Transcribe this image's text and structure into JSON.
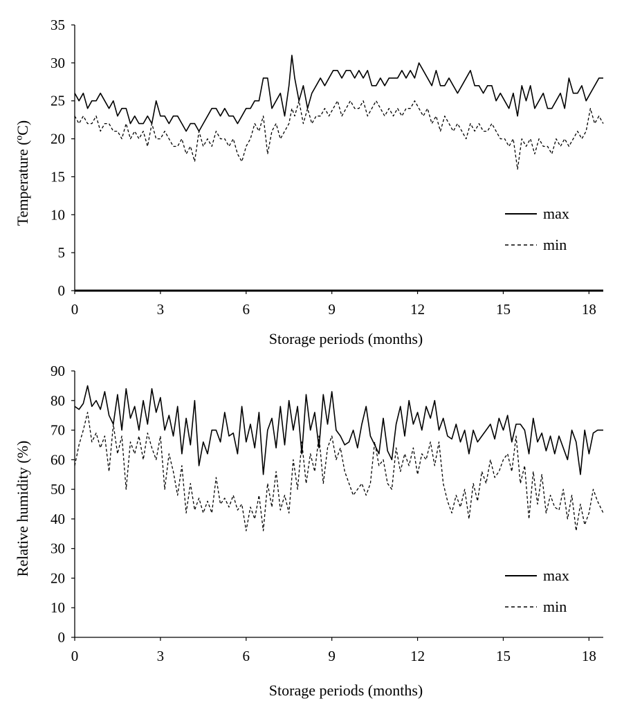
{
  "chart_data": [
    {
      "type": "line",
      "xlabel": "Storage periods (months)",
      "ylabel": "Temperature (ºC)",
      "xlim": [
        0,
        18.5
      ],
      "ylim": [
        0,
        35
      ],
      "x_ticks": [
        "0",
        "3",
        "6",
        "9",
        "12",
        "15",
        "18"
      ],
      "y_ticks": [
        "0",
        "5",
        "10",
        "15",
        "20",
        "25",
        "30",
        "35"
      ],
      "grid": false,
      "legend_position": "right",
      "series": [
        {
          "name": "max",
          "style": "solid",
          "x": [
            0,
            0.15,
            0.3,
            0.45,
            0.6,
            0.75,
            0.9,
            1.05,
            1.2,
            1.35,
            1.5,
            1.65,
            1.8,
            1.95,
            2.1,
            2.25,
            2.4,
            2.55,
            2.7,
            2.85,
            3.0,
            3.15,
            3.3,
            3.45,
            3.6,
            3.75,
            3.9,
            4.05,
            4.2,
            4.35,
            4.5,
            4.65,
            4.8,
            4.95,
            5.1,
            5.25,
            5.4,
            5.55,
            5.7,
            5.85,
            6.0,
            6.15,
            6.3,
            6.45,
            6.6,
            6.75,
            6.9,
            7.05,
            7.2,
            7.35,
            7.5,
            7.6,
            7.7,
            7.85,
            8.0,
            8.15,
            8.3,
            8.45,
            8.6,
            8.75,
            8.9,
            9.05,
            9.2,
            9.35,
            9.5,
            9.65,
            9.8,
            9.95,
            10.1,
            10.25,
            10.4,
            10.55,
            10.7,
            10.85,
            11.0,
            11.15,
            11.3,
            11.45,
            11.6,
            11.75,
            11.9,
            12.05,
            12.2,
            12.35,
            12.5,
            12.65,
            12.8,
            12.95,
            13.1,
            13.25,
            13.4,
            13.55,
            13.7,
            13.85,
            14.0,
            14.15,
            14.3,
            14.45,
            14.6,
            14.75,
            14.9,
            15.05,
            15.2,
            15.35,
            15.5,
            15.65,
            15.8,
            15.95,
            16.1,
            16.25,
            16.4,
            16.55,
            16.7,
            16.85,
            17.0,
            17.15,
            17.3,
            17.45,
            17.6,
            17.75,
            17.9,
            18.05,
            18.2,
            18.35,
            18.5
          ],
          "values": [
            26,
            25,
            26,
            24,
            25,
            25,
            26,
            25,
            24,
            25,
            23,
            24,
            24,
            22,
            23,
            22,
            22,
            23,
            22,
            25,
            23,
            23,
            22,
            23,
            23,
            22,
            21,
            22,
            22,
            21,
            22,
            23,
            24,
            24,
            23,
            24,
            23,
            23,
            22,
            23,
            24,
            24,
            25,
            25,
            28,
            28,
            24,
            25,
            26,
            23,
            27,
            31,
            28,
            25,
            27,
            24,
            26,
            27,
            28,
            27,
            28,
            29,
            29,
            28,
            29,
            29,
            28,
            29,
            28,
            29,
            27,
            27,
            28,
            27,
            28,
            28,
            28,
            29,
            28,
            29,
            28,
            30,
            29,
            28,
            27,
            29,
            27,
            27,
            28,
            27,
            26,
            27,
            28,
            29,
            27,
            27,
            26,
            27,
            27,
            25,
            26,
            25,
            24,
            26,
            23,
            27,
            25,
            27,
            24,
            25,
            26,
            24,
            24,
            25,
            26,
            24,
            28,
            26,
            26,
            27,
            25,
            26,
            27,
            28,
            28
          ]
        },
        {
          "name": "min",
          "style": "dashed",
          "x": [
            0,
            0.15,
            0.3,
            0.45,
            0.6,
            0.75,
            0.9,
            1.05,
            1.2,
            1.35,
            1.5,
            1.65,
            1.8,
            1.95,
            2.1,
            2.25,
            2.4,
            2.55,
            2.7,
            2.85,
            3.0,
            3.15,
            3.3,
            3.45,
            3.6,
            3.75,
            3.9,
            4.05,
            4.2,
            4.35,
            4.5,
            4.65,
            4.8,
            4.95,
            5.1,
            5.25,
            5.4,
            5.55,
            5.7,
            5.85,
            6.0,
            6.15,
            6.3,
            6.45,
            6.6,
            6.75,
            6.9,
            7.05,
            7.2,
            7.35,
            7.5,
            7.6,
            7.7,
            7.85,
            8.0,
            8.15,
            8.3,
            8.45,
            8.6,
            8.75,
            8.9,
            9.05,
            9.2,
            9.35,
            9.5,
            9.65,
            9.8,
            9.95,
            10.1,
            10.25,
            10.4,
            10.55,
            10.7,
            10.85,
            11.0,
            11.15,
            11.3,
            11.45,
            11.6,
            11.75,
            11.9,
            12.05,
            12.2,
            12.35,
            12.5,
            12.65,
            12.8,
            12.95,
            13.1,
            13.25,
            13.4,
            13.55,
            13.7,
            13.85,
            14.0,
            14.15,
            14.3,
            14.45,
            14.6,
            14.75,
            14.9,
            15.05,
            15.2,
            15.35,
            15.5,
            15.65,
            15.8,
            15.95,
            16.1,
            16.25,
            16.4,
            16.55,
            16.7,
            16.85,
            17.0,
            17.15,
            17.3,
            17.45,
            17.6,
            17.75,
            17.9,
            18.05,
            18.2,
            18.35,
            18.5
          ],
          "values": [
            23,
            22,
            23,
            22,
            22,
            23,
            21,
            22,
            22,
            21,
            21,
            20,
            22,
            20,
            21,
            20,
            21,
            19,
            22,
            20,
            20,
            21,
            20,
            19,
            19,
            20,
            18,
            19,
            17,
            21,
            19,
            20,
            19,
            21,
            20,
            20,
            19,
            20,
            18,
            17,
            19,
            20,
            22,
            21,
            23,
            18,
            21,
            22,
            20,
            21,
            22,
            24,
            23,
            25,
            22,
            24,
            22,
            23,
            23,
            24,
            23,
            24,
            25,
            23,
            24,
            25,
            24,
            24,
            25,
            23,
            24,
            25,
            24,
            23,
            24,
            23,
            24,
            23,
            24,
            24,
            25,
            24,
            23,
            24,
            22,
            23,
            21,
            23,
            22,
            21,
            22,
            21,
            20,
            22,
            21,
            22,
            21,
            21,
            22,
            21,
            20,
            20,
            19,
            20,
            16,
            20,
            19,
            20,
            18,
            20,
            19,
            19,
            18,
            20,
            19,
            20,
            19,
            20,
            21,
            20,
            21,
            24,
            22,
            23,
            22
          ]
        }
      ]
    },
    {
      "type": "line",
      "xlabel": "Storage periods (months)",
      "ylabel": "Relative humidity (%)",
      "xlim": [
        0,
        18.5
      ],
      "ylim": [
        0,
        90
      ],
      "x_ticks": [
        "0",
        "3",
        "6",
        "9",
        "12",
        "15",
        "18"
      ],
      "y_ticks": [
        "0",
        "10",
        "20",
        "30",
        "40",
        "50",
        "60",
        "70",
        "80",
        "90"
      ],
      "grid": false,
      "legend_position": "right",
      "series": [
        {
          "name": "max",
          "style": "solid",
          "x": [
            0,
            0.15,
            0.3,
            0.45,
            0.6,
            0.75,
            0.9,
            1.05,
            1.2,
            1.35,
            1.5,
            1.65,
            1.8,
            1.95,
            2.1,
            2.25,
            2.4,
            2.55,
            2.7,
            2.85,
            3.0,
            3.15,
            3.3,
            3.45,
            3.6,
            3.75,
            3.9,
            4.05,
            4.2,
            4.35,
            4.5,
            4.65,
            4.8,
            4.95,
            5.1,
            5.25,
            5.4,
            5.55,
            5.7,
            5.85,
            6.0,
            6.15,
            6.3,
            6.45,
            6.6,
            6.75,
            6.9,
            7.05,
            7.2,
            7.35,
            7.5,
            7.65,
            7.8,
            7.95,
            8.1,
            8.25,
            8.4,
            8.55,
            8.7,
            8.85,
            9.0,
            9.15,
            9.3,
            9.45,
            9.6,
            9.75,
            9.9,
            10.05,
            10.2,
            10.35,
            10.5,
            10.65,
            10.8,
            10.95,
            11.1,
            11.25,
            11.4,
            11.55,
            11.7,
            11.85,
            12.0,
            12.15,
            12.3,
            12.45,
            12.6,
            12.75,
            12.9,
            13.05,
            13.2,
            13.35,
            13.5,
            13.65,
            13.8,
            13.95,
            14.1,
            14.25,
            14.4,
            14.55,
            14.7,
            14.85,
            15.0,
            15.15,
            15.3,
            15.45,
            15.6,
            15.75,
            15.9,
            16.05,
            16.2,
            16.35,
            16.5,
            16.65,
            16.8,
            16.95,
            17.1,
            17.25,
            17.4,
            17.55,
            17.7,
            17.85,
            18.0,
            18.15,
            18.3,
            18.5
          ],
          "values": [
            78,
            77,
            79,
            85,
            78,
            80,
            77,
            83,
            75,
            72,
            82,
            70,
            84,
            74,
            78,
            70,
            80,
            72,
            84,
            76,
            81,
            70,
            75,
            68,
            78,
            62,
            74,
            65,
            80,
            58,
            66,
            62,
            70,
            70,
            66,
            76,
            68,
            69,
            62,
            78,
            66,
            72,
            64,
            76,
            55,
            70,
            74,
            64,
            78,
            65,
            80,
            70,
            78,
            62,
            82,
            70,
            76,
            64,
            82,
            72,
            83,
            70,
            68,
            65,
            66,
            70,
            64,
            72,
            78,
            68,
            65,
            62,
            74,
            63,
            60,
            72,
            78,
            68,
            80,
            72,
            76,
            70,
            78,
            74,
            80,
            70,
            74,
            68,
            67,
            72,
            66,
            70,
            62,
            70,
            66,
            68,
            70,
            72,
            67,
            74,
            70,
            75,
            66,
            72,
            72,
            70,
            62,
            74,
            66,
            69,
            63,
            68,
            62,
            68,
            64,
            60,
            70,
            66,
            55,
            70,
            62,
            69,
            70,
            70
          ]
        },
        {
          "name": "min",
          "style": "dashed",
          "x": [
            0,
            0.15,
            0.3,
            0.45,
            0.6,
            0.75,
            0.9,
            1.05,
            1.2,
            1.35,
            1.5,
            1.65,
            1.8,
            1.95,
            2.1,
            2.25,
            2.4,
            2.55,
            2.7,
            2.85,
            3.0,
            3.15,
            3.3,
            3.45,
            3.6,
            3.75,
            3.9,
            4.05,
            4.2,
            4.35,
            4.5,
            4.65,
            4.8,
            4.95,
            5.1,
            5.25,
            5.4,
            5.55,
            5.7,
            5.85,
            6.0,
            6.15,
            6.3,
            6.45,
            6.6,
            6.75,
            6.9,
            7.05,
            7.2,
            7.35,
            7.5,
            7.65,
            7.8,
            7.95,
            8.1,
            8.25,
            8.4,
            8.55,
            8.7,
            8.85,
            9.0,
            9.15,
            9.3,
            9.45,
            9.6,
            9.75,
            9.9,
            10.05,
            10.2,
            10.35,
            10.5,
            10.65,
            10.8,
            10.95,
            11.1,
            11.25,
            11.4,
            11.55,
            11.7,
            11.85,
            12.0,
            12.15,
            12.3,
            12.45,
            12.6,
            12.75,
            12.9,
            13.05,
            13.2,
            13.35,
            13.5,
            13.65,
            13.8,
            13.95,
            14.1,
            14.25,
            14.4,
            14.55,
            14.7,
            14.85,
            15.0,
            15.15,
            15.3,
            15.45,
            15.6,
            15.75,
            15.9,
            16.05,
            16.2,
            16.35,
            16.5,
            16.65,
            16.8,
            16.95,
            17.1,
            17.25,
            17.4,
            17.55,
            17.7,
            17.85,
            18.0,
            18.15,
            18.3,
            18.5
          ],
          "values": [
            58,
            65,
            70,
            76,
            66,
            69,
            64,
            68,
            56,
            72,
            62,
            68,
            50,
            66,
            62,
            68,
            60,
            69,
            64,
            60,
            68,
            50,
            62,
            56,
            48,
            58,
            42,
            52,
            43,
            47,
            42,
            46,
            42,
            54,
            45,
            47,
            44,
            48,
            43,
            45,
            36,
            44,
            40,
            48,
            36,
            52,
            44,
            56,
            43,
            48,
            42,
            60,
            50,
            66,
            52,
            62,
            56,
            68,
            52,
            64,
            68,
            60,
            64,
            56,
            52,
            48,
            50,
            52,
            48,
            52,
            66,
            58,
            60,
            52,
            50,
            64,
            56,
            62,
            58,
            64,
            55,
            62,
            60,
            66,
            58,
            66,
            52,
            46,
            42,
            48,
            44,
            50,
            40,
            52,
            46,
            56,
            52,
            60,
            54,
            56,
            60,
            62,
            56,
            68,
            52,
            58,
            40,
            56,
            45,
            55,
            42,
            48,
            44,
            43,
            50,
            40,
            48,
            36,
            45,
            38,
            42,
            50,
            46,
            42
          ]
        }
      ]
    }
  ]
}
